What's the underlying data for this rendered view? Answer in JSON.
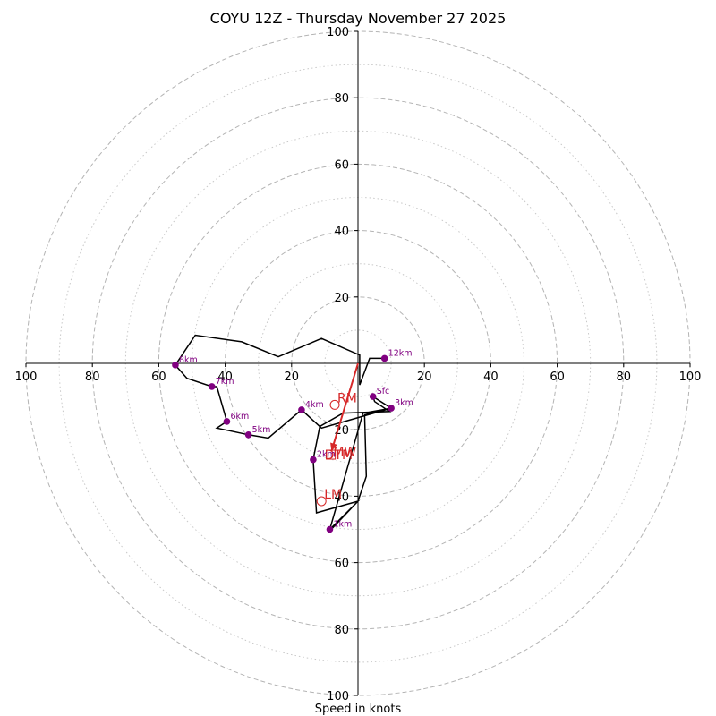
{
  "chart_data": {
    "type": "hodograph",
    "title": "COYU 12Z - Thursday November 27 2025",
    "xlabel": "Speed in knots",
    "xlim": [
      -100,
      100
    ],
    "ylim": [
      -100,
      100
    ],
    "ring_major": [
      20,
      40,
      60,
      80,
      100
    ],
    "ring_minor": [
      10,
      30,
      50,
      70,
      90
    ],
    "x_tick_labels": [
      "100",
      "80",
      "60",
      "40",
      "20",
      "20",
      "40",
      "60",
      "80",
      "100"
    ],
    "x_tick_values": [
      -100,
      -80,
      -60,
      -40,
      -20,
      20,
      40,
      60,
      80,
      100
    ],
    "y_tick_labels_top": [
      "20",
      "40",
      "60",
      "80",
      "100"
    ],
    "y_tick_values_top": [
      20,
      40,
      60,
      80,
      100
    ],
    "y_tick_labels_bottom": [
      "20",
      "40",
      "60",
      "80",
      "100"
    ],
    "y_tick_values_bottom": [
      -20,
      -40,
      -60,
      -80,
      -100
    ],
    "trace_color": "#000000",
    "marker_color": "#800080",
    "motion_color": "#d62728",
    "trace": [
      [
        -9.0,
        -51.0
      ],
      [
        0.0,
        -41.5
      ],
      [
        2.5,
        -34.0
      ],
      [
        2.0,
        -15.5
      ],
      [
        10.0,
        -13.5
      ],
      [
        4.5,
        -10.0
      ],
      [
        5.0,
        -11.5
      ],
      [
        9.5,
        -14.5
      ],
      [
        -4.5,
        -15.0
      ],
      [
        -11.5,
        -19.0
      ],
      [
        -13.5,
        -29.0
      ],
      [
        -12.5,
        -45.0
      ],
      [
        0.0,
        -41.5
      ],
      [
        -8.5,
        -50.0
      ],
      [
        1.5,
        -15.0
      ],
      [
        10.0,
        -13.5
      ],
      [
        -11.0,
        -19.5
      ],
      [
        -17.0,
        -14.0
      ],
      [
        -27.0,
        -22.5
      ],
      [
        -33.0,
        -21.5
      ],
      [
        -42.5,
        -19.5
      ],
      [
        -39.5,
        -17.5
      ],
      [
        -42.5,
        -7.0
      ],
      [
        -44.0,
        -7.0
      ],
      [
        -51.5,
        -4.5
      ],
      [
        -55.0,
        -0.5
      ],
      [
        -49.0,
        8.5
      ],
      [
        -35.0,
        6.5
      ],
      [
        -24.0,
        2.0
      ],
      [
        -11.0,
        7.5
      ],
      [
        0.5,
        2.5
      ],
      [
        0.5,
        -6.5
      ],
      [
        3.5,
        1.5
      ],
      [
        8.0,
        1.5
      ]
    ],
    "height_markers": [
      {
        "label": "12km",
        "u": 8.0,
        "v": 1.5
      },
      {
        "label": "8km",
        "u": -55.0,
        "v": -0.5
      },
      {
        "label": "7km",
        "u": -44.0,
        "v": -7.0
      },
      {
        "label": "6km",
        "u": -39.5,
        "v": -17.5
      },
      {
        "label": "5km",
        "u": -33.0,
        "v": -21.5
      },
      {
        "label": "4km",
        "u": -17.0,
        "v": -14.0
      },
      {
        "label": "3km",
        "u": 10.0,
        "v": -13.5
      },
      {
        "label": "Sfc",
        "u": 4.5,
        "v": -10.0
      },
      {
        "label": "2km",
        "u": -13.5,
        "v": -29.0
      },
      {
        "label": "1km",
        "u": -8.5,
        "v": -50.0
      }
    ],
    "storm_motions": [
      {
        "label": "RM",
        "u": -7.0,
        "v": -12.5
      },
      {
        "label": "LM",
        "u": -11.0,
        "v": -41.5
      },
      {
        "label": "MW",
        "u": -8.0,
        "v": -26.5
      },
      {
        "label": "DTM",
        "u": -9.0,
        "v": -27.5
      }
    ],
    "shear_vector": {
      "from": [
        0.0,
        0.0
      ],
      "to": [
        -8.0,
        -26.5
      ]
    }
  }
}
